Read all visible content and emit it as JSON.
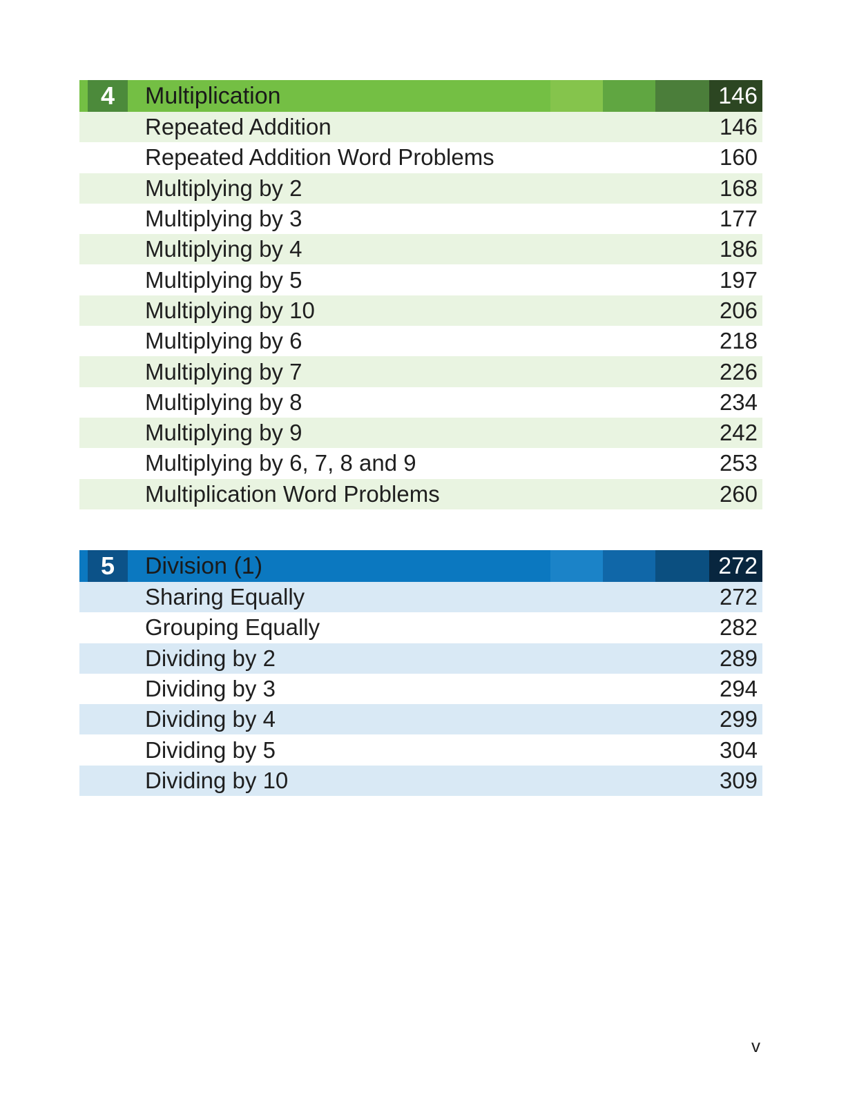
{
  "chapters": [
    {
      "number": "4",
      "title": "Multiplication",
      "page": "146",
      "color": "#74bf44",
      "entries": [
        {
          "title": "Repeated Addition",
          "page": "146"
        },
        {
          "title": "Repeated Addition Word Problems",
          "page": "160"
        },
        {
          "title": "Multiplying by 2",
          "page": "168"
        },
        {
          "title": "Multiplying by 3",
          "page": "177"
        },
        {
          "title": "Multiplying by 4",
          "page": "186"
        },
        {
          "title": "Multiplying by 5",
          "page": "197"
        },
        {
          "title": "Multiplying by 10",
          "page": "206"
        },
        {
          "title": "Multiplying by 6",
          "page": "218"
        },
        {
          "title": "Multiplying by 7",
          "page": "226"
        },
        {
          "title": "Multiplying by 8",
          "page": "234"
        },
        {
          "title": "Multiplying by 9",
          "page": "242"
        },
        {
          "title": "Multiplying by 6, 7, 8 and 9",
          "page": "253"
        },
        {
          "title": "Multiplication Word Problems",
          "page": "260"
        }
      ]
    },
    {
      "number": "5",
      "title": "Division (1)",
      "page": "272",
      "color": "#0b78c0",
      "entries": [
        {
          "title": "Sharing Equally",
          "page": "272"
        },
        {
          "title": "Grouping Equally",
          "page": "282"
        },
        {
          "title": "Dividing by 2",
          "page": "289"
        },
        {
          "title": "Dividing by 3",
          "page": "294"
        },
        {
          "title": "Dividing by 4",
          "page": "299"
        },
        {
          "title": "Dividing by 5",
          "page": "304"
        },
        {
          "title": "Dividing by 10",
          "page": "309"
        }
      ]
    }
  ],
  "footer": {
    "page_number": "v"
  }
}
